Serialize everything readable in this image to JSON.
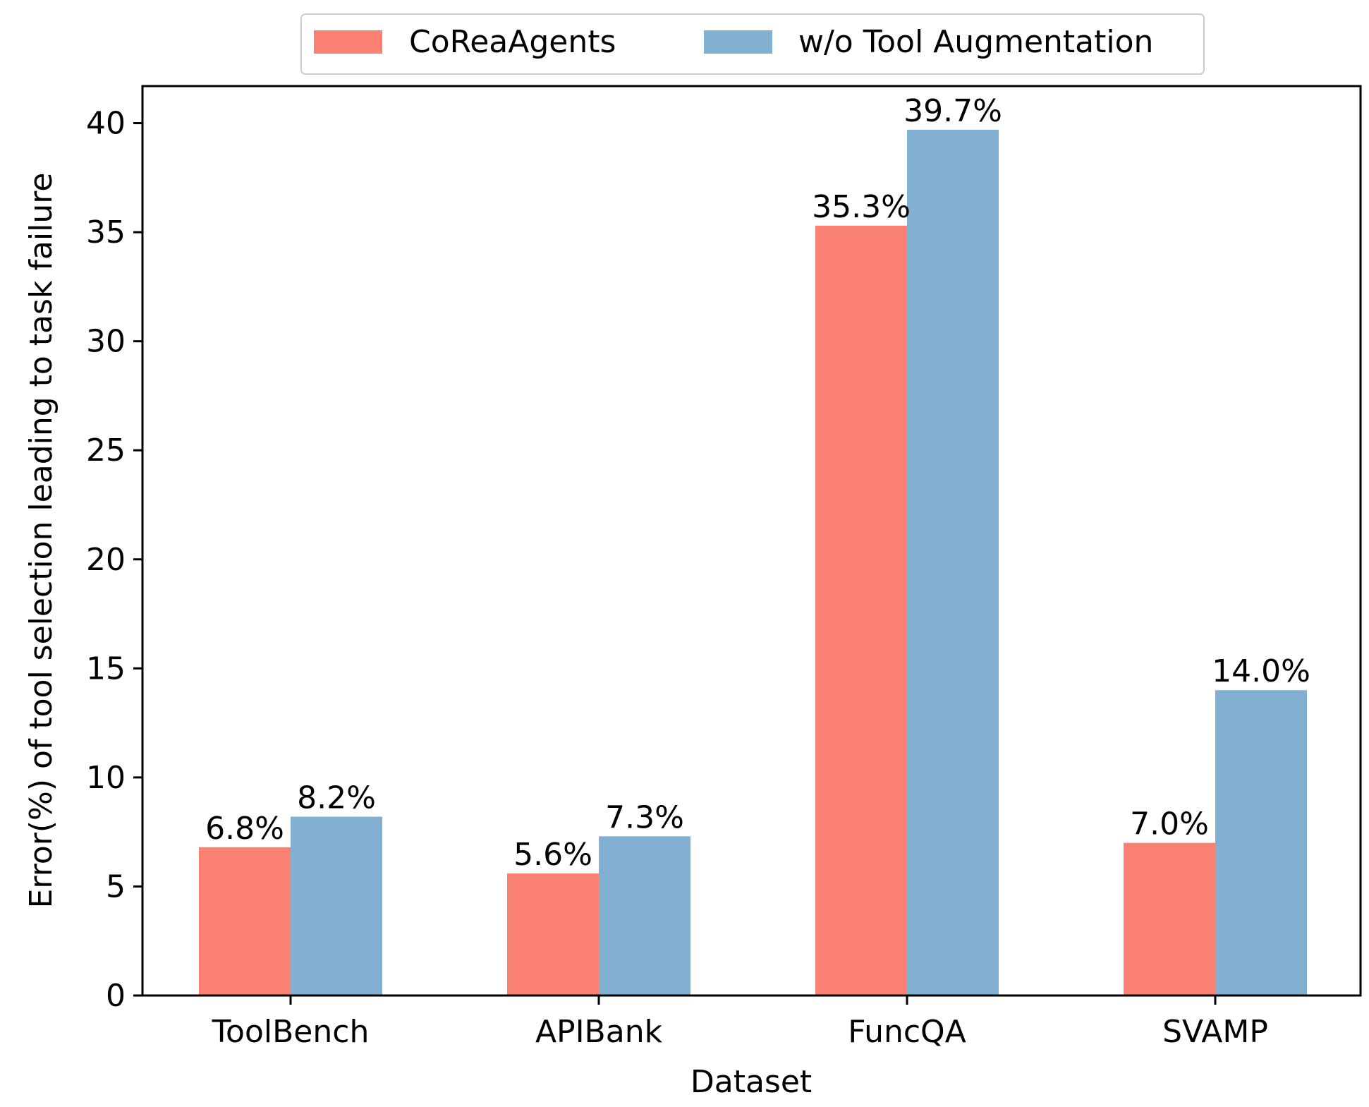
{
  "chart_data": {
    "type": "bar",
    "title": "",
    "xlabel": "Dataset",
    "ylabel": "Error(%) of tool selection leading to task failure",
    "categories": [
      "ToolBench",
      "APIBank",
      "FuncQA",
      "SVAMP"
    ],
    "series": [
      {
        "name": "CoReaAgents",
        "color": "#fa8072",
        "values": [
          6.8,
          5.6,
          35.3,
          7.0
        ],
        "labels": [
          "6.8%",
          "5.6%",
          "35.3%",
          "7.0%"
        ]
      },
      {
        "name": "w/o Tool Augmentation",
        "color": "#82b0d2",
        "values": [
          8.2,
          7.3,
          39.7,
          14.0
        ],
        "labels": [
          "8.2%",
          "7.3%",
          "39.7%",
          "14.0%"
        ]
      }
    ],
    "ylim": [
      0,
      41.7
    ],
    "yticks": [
      0,
      5,
      10,
      15,
      20,
      25,
      30,
      35,
      40
    ],
    "ytick_labels": [
      "0",
      "5",
      "10",
      "15",
      "20",
      "25",
      "30",
      "35",
      "40"
    ],
    "grid": false,
    "legend_position": "top-center, above plot"
  }
}
